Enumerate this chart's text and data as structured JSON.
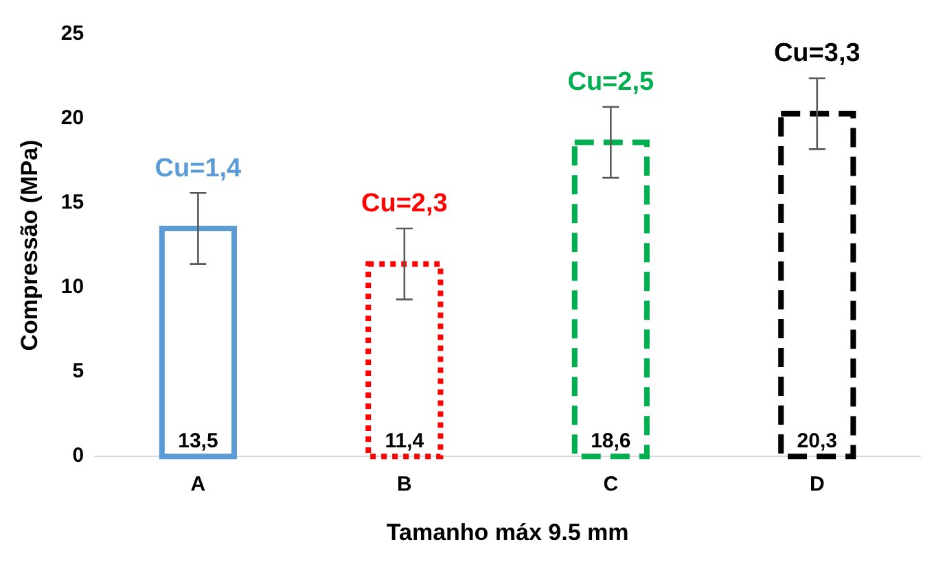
{
  "chart_data": {
    "type": "bar",
    "xlabel": "Tamanho máx 9.5 mm",
    "ylabel": "Compressão (MPa)",
    "categories": [
      "A",
      "B",
      "C",
      "D"
    ],
    "series": [
      {
        "color": "#5b9bd5",
        "line_style": "solid",
        "values": [
          13.5,
          null,
          null,
          null
        ],
        "errors": [
          2.1,
          null,
          null,
          null
        ],
        "value_labels": [
          "13,5",
          null,
          null,
          null
        ]
      },
      {
        "color": "#ff0000",
        "line_style": "dotted",
        "values": [
          null,
          11.4,
          null,
          null
        ],
        "errors": [
          null,
          2.1,
          null,
          null
        ],
        "value_labels": [
          null,
          "11,4",
          null,
          null
        ]
      },
      {
        "color": "#00b050",
        "line_style": "dashed",
        "values": [
          null,
          null,
          18.6,
          null
        ],
        "errors": [
          null,
          null,
          2.1,
          null
        ],
        "value_labels": [
          null,
          null,
          "18,6",
          null
        ]
      },
      {
        "color": "#000000",
        "line_style": "dashed",
        "values": [
          null,
          null,
          null,
          20.3
        ],
        "errors": [
          null,
          null,
          null,
          2.1
        ],
        "value_labels": [
          null,
          null,
          null,
          "20,3"
        ]
      }
    ],
    "annotations": [
      "Cu=1,4",
      "Cu=2,3",
      "Cu=2,5",
      "Cu=3,3"
    ],
    "ylim": [
      0,
      25
    ],
    "yticks": [
      0,
      5,
      10,
      15,
      20,
      25
    ],
    "grid": false,
    "legend": false
  }
}
